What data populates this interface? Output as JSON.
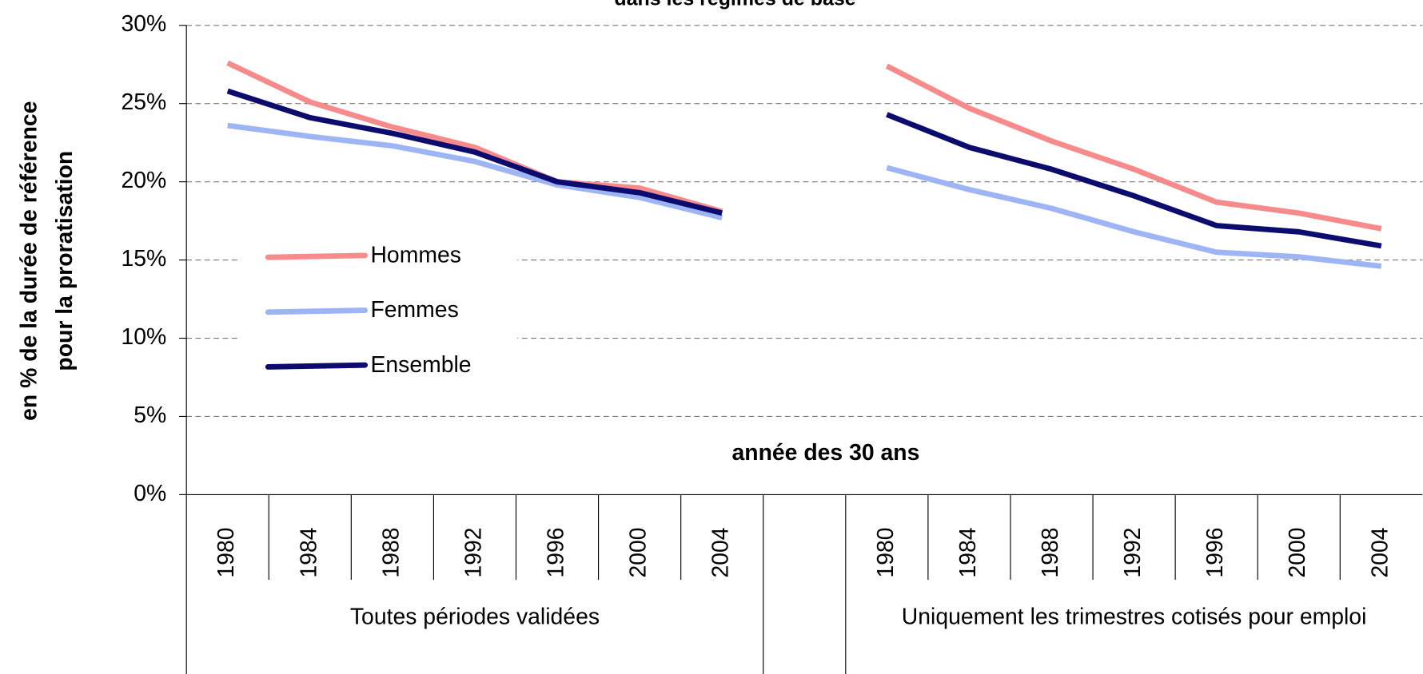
{
  "chart_data": {
    "type": "line",
    "title": "dans les régimes de base",
    "ylabel": [
      "en % de la durée de référence",
      "pour la proratisation"
    ],
    "annotation": "année des 30 ans",
    "categories": [
      "1980",
      "1984",
      "1988",
      "1992",
      "1996",
      "2000",
      "2004",
      null,
      "1980",
      "1984",
      "1988",
      "1992",
      "1996",
      "2000",
      "2004"
    ],
    "groups": [
      "Toutes périodes validées",
      "Uniquement les trimestres cotisés pour emploi"
    ],
    "series": [
      {
        "name": "Hommes",
        "color": "#f78b8b",
        "values": [
          27.6,
          25.1,
          23.5,
          22.2,
          20.0,
          19.6,
          18.1,
          null,
          27.4,
          24.7,
          22.6,
          20.8,
          18.7,
          18.0,
          17.0
        ]
      },
      {
        "name": "Femmes",
        "color": "#9db4f5",
        "values": [
          23.6,
          22.9,
          22.3,
          21.3,
          19.8,
          19.0,
          17.7,
          null,
          20.9,
          19.5,
          18.3,
          16.8,
          15.5,
          15.2,
          14.6
        ]
      },
      {
        "name": "Ensemble",
        "color": "#0c0c6e",
        "values": [
          25.8,
          24.1,
          23.1,
          21.9,
          20.0,
          19.3,
          18.0,
          null,
          24.3,
          22.2,
          20.8,
          19.1,
          17.2,
          16.8,
          15.9
        ]
      }
    ],
    "ylim": [
      0,
      30
    ],
    "yticks": [
      {
        "value": 0,
        "label": "0%"
      },
      {
        "value": 5,
        "label": "5%"
      },
      {
        "value": 10,
        "label": "10%"
      },
      {
        "value": 15,
        "label": "15%"
      },
      {
        "value": 20,
        "label": "20%"
      },
      {
        "value": 25,
        "label": "25%"
      },
      {
        "value": 30,
        "label": "30%"
      }
    ],
    "grid": true
  }
}
